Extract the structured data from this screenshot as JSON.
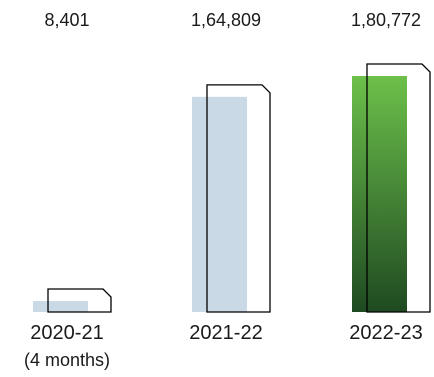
{
  "chart_data": {
    "type": "bar",
    "title": "",
    "xlabel": "",
    "ylabel": "",
    "categories": [
      {
        "label": "2020-21",
        "sublabel": "(4 months)"
      },
      {
        "label": "2021-22",
        "sublabel": ""
      },
      {
        "label": "2022-23",
        "sublabel": ""
      }
    ],
    "values": [
      8401,
      164809,
      180772
    ],
    "value_labels": [
      "8,401",
      "1,64,809",
      "1,80,772"
    ],
    "ylim": [
      0,
      180772
    ],
    "grid": false,
    "legend": "none",
    "colors": {
      "bar_default": "#c9d9e5",
      "bar_highlight_top": "#6cc04a",
      "bar_highlight_bottom": "#1f4a22",
      "outline": "#000000",
      "text": "#1a1a1a"
    }
  }
}
